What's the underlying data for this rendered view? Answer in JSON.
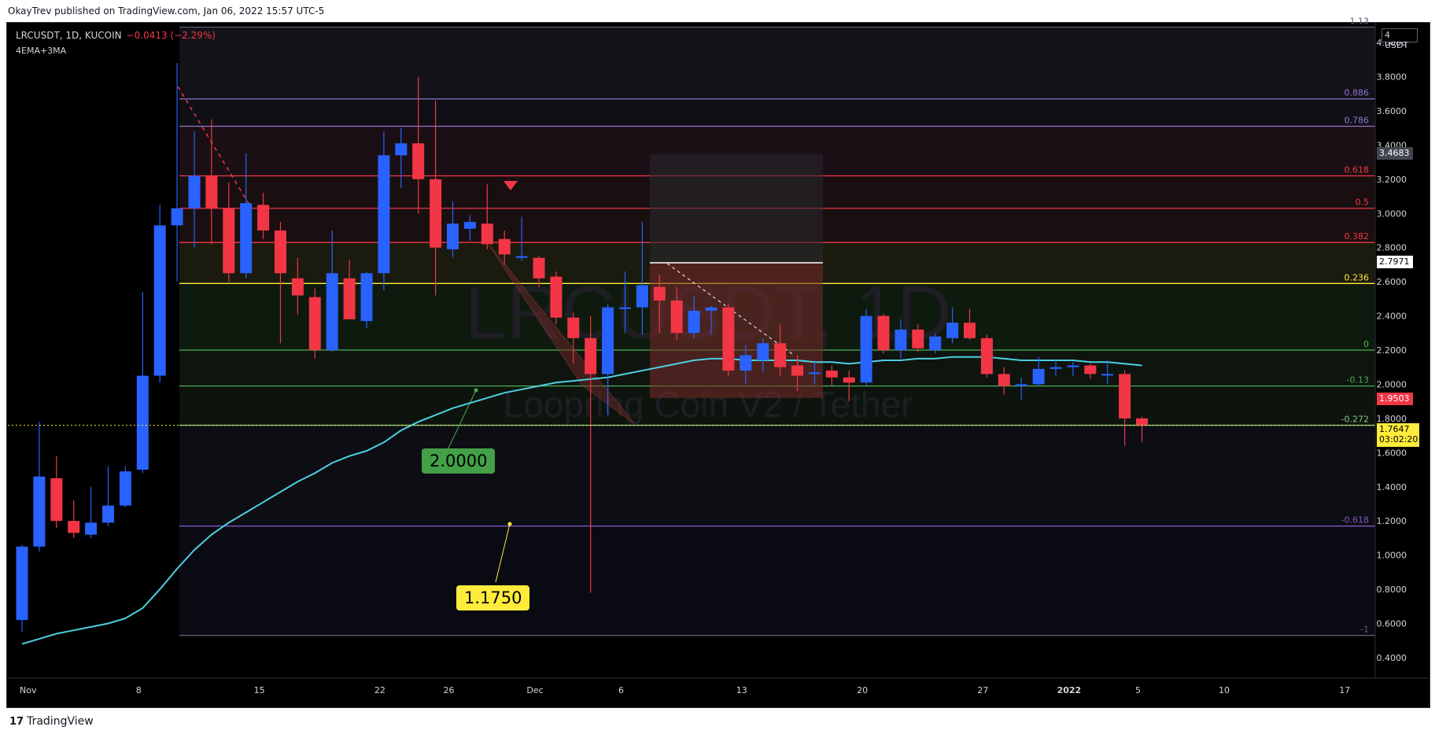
{
  "header": {
    "published": "OkayTrev published on TradingView.com, Jan 06, 2022 15:57 UTC-5"
  },
  "legend": {
    "symbol": "LRCUSDT, 1D, KUCOIN",
    "change": "−0.0413 (−2.29%)",
    "indicator": "4EMA+3MA"
  },
  "footer": {
    "brand": "TradingView"
  },
  "currency_badge": "USDT",
  "price_tags": {
    "high_tag": "3.4683",
    "white_tag": "2.7971",
    "red_tag": "1.9503",
    "current_price": "1.7647",
    "countdown": "03:02:20"
  },
  "callouts": {
    "green": "2.0000",
    "yellow": "1.1750"
  },
  "watermark": {
    "line1": "LRCUSDT, 1D",
    "line2": "Loopring Coin V2 / Tether"
  },
  "colors": {
    "up": "#2962ff",
    "down": "#f23645",
    "ema": "#4dd0e1",
    "background": "#000000"
  },
  "chart_data": {
    "type": "candlestick",
    "x_tick_labels": [
      "Nov",
      "8",
      "15",
      "22",
      "26",
      "Dec",
      "6",
      "13",
      "20",
      "27",
      "2022",
      "5",
      "10",
      "17"
    ],
    "y_tick_labels": [
      "4.0000",
      "3.8000",
      "3.6000",
      "3.4000",
      "3.2000",
      "3.0000",
      "2.8000",
      "2.6000",
      "2.4000",
      "2.2000",
      "2.0000",
      "1.8000",
      "1.6000",
      "1.4000",
      "1.2000",
      "1.0000",
      "0.8000",
      "0.6000",
      "0.4000"
    ],
    "ylim": [
      0.28,
      4.12
    ],
    "fib_levels": [
      {
        "label": "1.13",
        "price": 4.09,
        "color": "#5d606b"
      },
      {
        "label": "0.886",
        "price": 3.67,
        "color": "#9575cd"
      },
      {
        "label": "0.786",
        "price": 3.51,
        "color": "#9575cd"
      },
      {
        "label": "0.618",
        "price": 3.22,
        "color": "#f23645"
      },
      {
        "label": "0.5",
        "price": 3.03,
        "color": "#f23645"
      },
      {
        "label": "0.382",
        "price": 2.83,
        "color": "#f23645"
      },
      {
        "label": "0.236",
        "price": 2.59,
        "color": "#ffeb3b"
      },
      {
        "label": "0",
        "price": 2.2,
        "color": "#4caf50"
      },
      {
        "label": "-0.13",
        "price": 1.99,
        "color": "#4caf50"
      },
      {
        "label": "-0.272",
        "price": 1.76,
        "color": "#81c784"
      },
      {
        "label": "-0.618",
        "price": 1.17,
        "color": "#7e57c2"
      },
      {
        "label": "-1",
        "price": 0.53,
        "color": "#5d606b"
      }
    ],
    "candles": [
      {
        "o": 0.62,
        "h": 1.06,
        "l": 0.55,
        "c": 1.05
      },
      {
        "o": 1.05,
        "h": 1.78,
        "l": 1.02,
        "c": 1.46
      },
      {
        "o": 1.45,
        "h": 1.58,
        "l": 1.16,
        "c": 1.2
      },
      {
        "o": 1.2,
        "h": 1.32,
        "l": 1.1,
        "c": 1.13
      },
      {
        "o": 1.12,
        "h": 1.4,
        "l": 1.1,
        "c": 1.19
      },
      {
        "o": 1.19,
        "h": 1.52,
        "l": 1.17,
        "c": 1.29
      },
      {
        "o": 1.29,
        "h": 1.52,
        "l": 1.28,
        "c": 1.49
      },
      {
        "o": 1.5,
        "h": 2.54,
        "l": 1.48,
        "c": 2.05
      },
      {
        "o": 2.05,
        "h": 3.05,
        "l": 2.01,
        "c": 2.93
      },
      {
        "o": 2.93,
        "h": 3.88,
        "l": 2.6,
        "c": 3.03
      },
      {
        "o": 3.03,
        "h": 3.48,
        "l": 2.8,
        "c": 3.22
      },
      {
        "o": 3.22,
        "h": 3.55,
        "l": 2.82,
        "c": 3.03
      },
      {
        "o": 3.03,
        "h": 3.18,
        "l": 2.6,
        "c": 2.65
      },
      {
        "o": 2.65,
        "h": 3.35,
        "l": 2.62,
        "c": 3.06
      },
      {
        "o": 3.05,
        "h": 3.12,
        "l": 2.85,
        "c": 2.9
      },
      {
        "o": 2.9,
        "h": 2.95,
        "l": 2.24,
        "c": 2.65
      },
      {
        "o": 2.62,
        "h": 2.74,
        "l": 2.41,
        "c": 2.52
      },
      {
        "o": 2.51,
        "h": 2.56,
        "l": 2.15,
        "c": 2.2
      },
      {
        "o": 2.2,
        "h": 2.9,
        "l": 2.19,
        "c": 2.65
      },
      {
        "o": 2.62,
        "h": 2.73,
        "l": 2.4,
        "c": 2.38
      },
      {
        "o": 2.37,
        "h": 2.66,
        "l": 2.33,
        "c": 2.65
      },
      {
        "o": 2.65,
        "h": 3.48,
        "l": 2.55,
        "c": 3.34
      },
      {
        "o": 3.34,
        "h": 3.5,
        "l": 3.15,
        "c": 3.41
      },
      {
        "o": 3.41,
        "h": 3.8,
        "l": 3.0,
        "c": 3.2
      },
      {
        "o": 3.2,
        "h": 3.66,
        "l": 2.52,
        "c": 2.8
      },
      {
        "o": 2.79,
        "h": 3.07,
        "l": 2.74,
        "c": 2.94
      },
      {
        "o": 2.91,
        "h": 2.99,
        "l": 2.84,
        "c": 2.95
      },
      {
        "o": 2.94,
        "h": 3.17,
        "l": 2.79,
        "c": 2.82
      },
      {
        "o": 2.85,
        "h": 2.9,
        "l": 2.7,
        "c": 2.76
      },
      {
        "o": 2.74,
        "h": 2.98,
        "l": 2.72,
        "c": 2.75
      },
      {
        "o": 2.74,
        "h": 2.75,
        "l": 2.57,
        "c": 2.62
      },
      {
        "o": 2.63,
        "h": 2.66,
        "l": 2.35,
        "c": 2.39
      },
      {
        "o": 2.39,
        "h": 2.42,
        "l": 2.12,
        "c": 2.27
      },
      {
        "o": 2.27,
        "h": 2.4,
        "l": 0.78,
        "c": 2.06
      },
      {
        "o": 2.06,
        "h": 2.47,
        "l": 1.82,
        "c": 2.45
      },
      {
        "o": 2.45,
        "h": 2.66,
        "l": 2.3,
        "c": 2.45
      },
      {
        "o": 2.45,
        "h": 2.95,
        "l": 2.29,
        "c": 2.58
      },
      {
        "o": 2.57,
        "h": 2.64,
        "l": 2.3,
        "c": 2.49
      },
      {
        "o": 2.49,
        "h": 2.57,
        "l": 2.26,
        "c": 2.3
      },
      {
        "o": 2.3,
        "h": 2.52,
        "l": 2.27,
        "c": 2.43
      },
      {
        "o": 2.43,
        "h": 2.46,
        "l": 2.29,
        "c": 2.45
      },
      {
        "o": 2.45,
        "h": 2.47,
        "l": 2.05,
        "c": 2.08
      },
      {
        "o": 2.08,
        "h": 2.23,
        "l": 2.0,
        "c": 2.17
      },
      {
        "o": 2.14,
        "h": 2.27,
        "l": 2.07,
        "c": 2.24
      },
      {
        "o": 2.24,
        "h": 2.35,
        "l": 2.05,
        "c": 2.1
      },
      {
        "o": 2.11,
        "h": 2.17,
        "l": 1.96,
        "c": 2.05
      },
      {
        "o": 2.06,
        "h": 2.13,
        "l": 2.0,
        "c": 2.07
      },
      {
        "o": 2.08,
        "h": 2.11,
        "l": 1.99,
        "c": 2.04
      },
      {
        "o": 2.04,
        "h": 2.08,
        "l": 1.9,
        "c": 2.01
      },
      {
        "o": 2.01,
        "h": 2.44,
        "l": 1.99,
        "c": 2.4
      },
      {
        "o": 2.4,
        "h": 2.41,
        "l": 2.18,
        "c": 2.2
      },
      {
        "o": 2.2,
        "h": 2.38,
        "l": 2.15,
        "c": 2.32
      },
      {
        "o": 2.32,
        "h": 2.35,
        "l": 2.19,
        "c": 2.21
      },
      {
        "o": 2.2,
        "h": 2.3,
        "l": 2.18,
        "c": 2.28
      },
      {
        "o": 2.27,
        "h": 2.45,
        "l": 2.24,
        "c": 2.36
      },
      {
        "o": 2.36,
        "h": 2.44,
        "l": 2.26,
        "c": 2.27
      },
      {
        "o": 2.27,
        "h": 2.29,
        "l": 2.04,
        "c": 2.06
      },
      {
        "o": 2.06,
        "h": 2.1,
        "l": 1.94,
        "c": 1.99
      },
      {
        "o": 1.99,
        "h": 2.04,
        "l": 1.91,
        "c": 2.0
      },
      {
        "o": 2.0,
        "h": 2.16,
        "l": 1.99,
        "c": 2.09
      },
      {
        "o": 2.09,
        "h": 2.14,
        "l": 2.05,
        "c": 2.1
      },
      {
        "o": 2.1,
        "h": 2.13,
        "l": 2.05,
        "c": 2.11
      },
      {
        "o": 2.11,
        "h": 2.12,
        "l": 2.03,
        "c": 2.06
      },
      {
        "o": 2.06,
        "h": 2.14,
        "l": 2.0,
        "c": 2.06
      },
      {
        "o": 2.06,
        "h": 2.08,
        "l": 1.64,
        "c": 1.8
      },
      {
        "o": 1.8,
        "h": 1.81,
        "l": 1.66,
        "c": 1.76
      }
    ],
    "ema": [
      0.48,
      0.51,
      0.54,
      0.56,
      0.58,
      0.6,
      0.63,
      0.69,
      0.8,
      0.92,
      1.03,
      1.12,
      1.19,
      1.25,
      1.31,
      1.37,
      1.43,
      1.48,
      1.54,
      1.58,
      1.61,
      1.66,
      1.73,
      1.78,
      1.82,
      1.86,
      1.89,
      1.92,
      1.95,
      1.97,
      1.99,
      2.01,
      2.02,
      2.03,
      2.04,
      2.06,
      2.08,
      2.1,
      2.12,
      2.14,
      2.15,
      2.15,
      2.14,
      2.14,
      2.14,
      2.14,
      2.13,
      2.13,
      2.12,
      2.13,
      2.14,
      2.14,
      2.15,
      2.15,
      2.16,
      2.16,
      2.16,
      2.15,
      2.14,
      2.14,
      2.14,
      2.14,
      2.13,
      2.13,
      2.12,
      2.11
    ]
  }
}
